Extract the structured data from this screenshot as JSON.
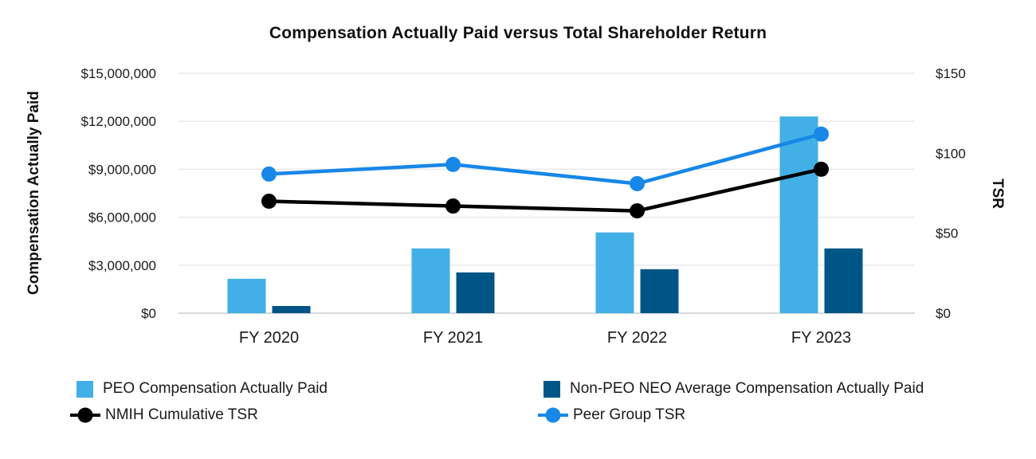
{
  "chart_data": {
    "type": "combo",
    "title": "Compensation Actually Paid versus Total Shareholder Return",
    "categories": [
      "FY 2020",
      "FY 2021",
      "FY 2022",
      "FY 2023"
    ],
    "series": [
      {
        "name": "PEO Compensation Actually Paid",
        "kind": "bar",
        "axis": "left",
        "color": "#42b0e6",
        "values": [
          2150000,
          4050000,
          5050000,
          12300000
        ]
      },
      {
        "name": "Non-PEO NEO Average Compensation Actually Paid",
        "kind": "bar",
        "axis": "left",
        "color": "#005587",
        "values": [
          450000,
          2550000,
          2750000,
          4050000
        ]
      },
      {
        "name": "NMIH Cumulative TSR",
        "kind": "line",
        "axis": "right",
        "color": "#000000",
        "values": [
          70,
          67,
          64,
          90
        ]
      },
      {
        "name": "Peer Group TSR",
        "kind": "line",
        "axis": "right",
        "color": "#1787e8",
        "values": [
          87,
          93,
          81,
          112
        ]
      }
    ],
    "left_axis": {
      "label": "Compensation Actually Paid",
      "min": 0,
      "max": 15000000,
      "ticks": [
        {
          "label": "$0",
          "value": 0
        },
        {
          "label": "$3,000,000",
          "value": 3000000
        },
        {
          "label": "$6,000,000",
          "value": 6000000
        },
        {
          "label": "$9,000,000",
          "value": 9000000
        },
        {
          "label": "$12,000,000",
          "value": 12000000
        },
        {
          "label": "$15,000,000",
          "value": 15000000
        }
      ]
    },
    "right_axis": {
      "label": "TSR",
      "min": 0,
      "max": 150,
      "ticks": [
        {
          "label": "$0",
          "value": 0
        },
        {
          "label": "$50",
          "value": 50
        },
        {
          "label": "$100",
          "value": 100
        },
        {
          "label": "$150",
          "value": 150
        }
      ]
    },
    "grid": true,
    "legend_position": "bottom",
    "grid_color": "#e9e9e9",
    "axis_line_color": "#d8d8d8",
    "text_color": "#1a1a1a"
  }
}
